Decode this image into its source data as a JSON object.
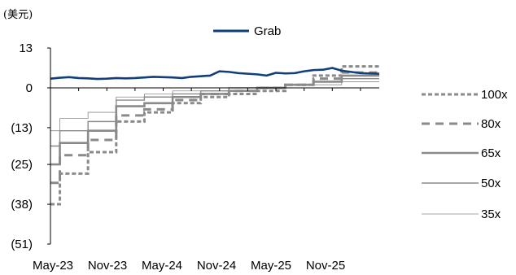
{
  "chart_data": {
    "type": "line",
    "unit_label": "(美元)",
    "y_tick_labels": [
      "13",
      "0",
      "(13)",
      "(25)",
      "(38)",
      "(51)"
    ],
    "y_tick_values": [
      13,
      0,
      -13,
      -25,
      -38,
      -51
    ],
    "ylim": [
      -51,
      13
    ],
    "x_tick_labels": [
      "May-23",
      "Nov-23",
      "May-24",
      "Nov-24",
      "May-25",
      "Nov-25"
    ],
    "x_range": [
      "2023-05",
      "2026-04"
    ],
    "grid": false,
    "legend_top": {
      "label": "Grab",
      "color": "#123f7a"
    },
    "grab_series": {
      "name": "Grab",
      "color": "#123f7a",
      "x": [
        "2023-05",
        "2023-06",
        "2023-07",
        "2023-08",
        "2023-09",
        "2023-10",
        "2023-11",
        "2023-12",
        "2024-01",
        "2024-02",
        "2024-03",
        "2024-04",
        "2024-05",
        "2024-06",
        "2024-07",
        "2024-08",
        "2024-09",
        "2024-10",
        "2024-11",
        "2024-12",
        "2025-01",
        "2025-02",
        "2025-03",
        "2025-04",
        "2025-05",
        "2025-06",
        "2025-07",
        "2025-08",
        "2025-09",
        "2025-10",
        "2025-11",
        "2025-12",
        "2026-01",
        "2026-02",
        "2026-03",
        "2026-04"
      ],
      "values": [
        3.0,
        3.3,
        3.5,
        3.2,
        3.1,
        2.9,
        3.0,
        3.2,
        3.1,
        3.2,
        3.4,
        3.6,
        3.5,
        3.4,
        3.2,
        3.6,
        3.8,
        4.0,
        5.4,
        5.2,
        4.8,
        4.6,
        4.4,
        4.0,
        4.9,
        4.7,
        4.8,
        5.4,
        5.8,
        5.9,
        6.5,
        5.6,
        5.2,
        4.8,
        4.7,
        4.6
      ]
    },
    "series": [
      {
        "name": "100x",
        "color": "#8a8a8a",
        "style": "dotted",
        "width": 3,
        "x": [
          "2023-05",
          "2023-06",
          "2023-09",
          "2023-12",
          "2024-03",
          "2024-06",
          "2024-09",
          "2024-12",
          "2025-03",
          "2025-06",
          "2025-09",
          "2025-12",
          "2026-04"
        ],
        "values": [
          -38,
          -28,
          -21,
          -11,
          -8,
          -5,
          -3,
          -2,
          -1,
          1,
          4,
          7,
          7
        ]
      },
      {
        "name": "80x",
        "color": "#8a8a8a",
        "style": "dashed",
        "width": 3,
        "x": [
          "2023-05",
          "2023-06",
          "2023-09",
          "2023-12",
          "2024-03",
          "2024-06",
          "2024-09",
          "2024-12",
          "2025-03",
          "2025-06",
          "2025-09",
          "2025-12",
          "2026-04"
        ],
        "values": [
          -31,
          -22,
          -17,
          -9,
          -7,
          -4,
          -2,
          -1,
          0,
          1,
          3,
          5,
          5
        ]
      },
      {
        "name": "65x",
        "color": "#8a8a8a",
        "style": "solid",
        "width": 2.6,
        "x": [
          "2023-05",
          "2023-06",
          "2023-09",
          "2023-12",
          "2024-03",
          "2024-06",
          "2024-09",
          "2024-12",
          "2025-03",
          "2025-06",
          "2025-09",
          "2025-12",
          "2026-04"
        ],
        "values": [
          -25,
          -18,
          -14,
          -6,
          -5,
          -3,
          -2,
          -1,
          0,
          1,
          2,
          4,
          4
        ]
      },
      {
        "name": "50x",
        "color": "#8a8a8a",
        "style": "solid",
        "width": 1.4,
        "x": [
          "2023-05",
          "2023-06",
          "2023-09",
          "2023-12",
          "2024-03",
          "2024-06",
          "2024-09",
          "2024-12",
          "2025-03",
          "2025-06",
          "2025-09",
          "2025-12",
          "2026-04"
        ],
        "values": [
          -19,
          -14,
          -11,
          -4,
          -3,
          -2,
          -1,
          0,
          0,
          1,
          2,
          3,
          3
        ]
      },
      {
        "name": "35x",
        "color": "#8a8a8a",
        "style": "solid",
        "width": 0.8,
        "x": [
          "2023-05",
          "2023-06",
          "2023-09",
          "2023-12",
          "2024-03",
          "2024-06",
          "2024-09",
          "2024-12",
          "2025-03",
          "2025-06",
          "2025-09",
          "2025-12",
          "2026-04"
        ],
        "values": [
          -14,
          -10,
          -8,
          -3,
          -2,
          -1,
          -1,
          0,
          0,
          1,
          1,
          2,
          2
        ]
      }
    ]
  }
}
